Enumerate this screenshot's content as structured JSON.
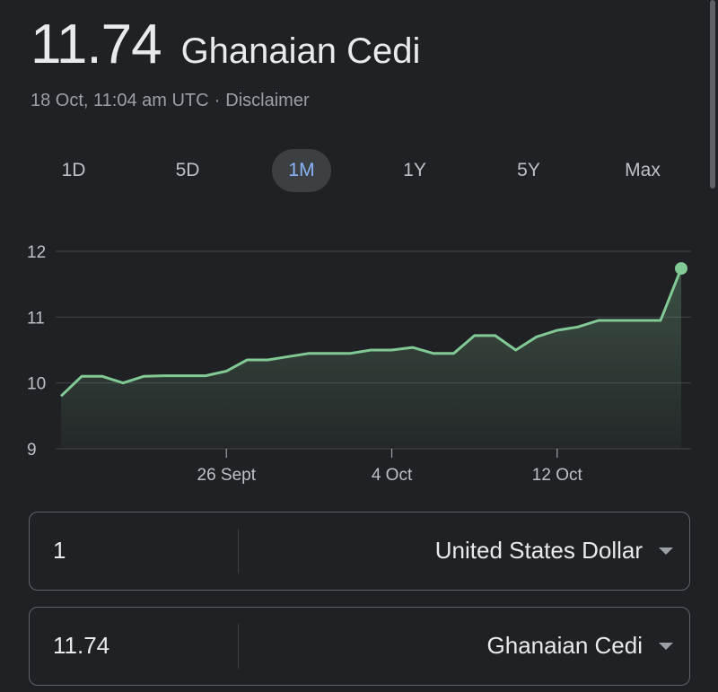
{
  "header": {
    "rate_value": "11.74",
    "rate_currency": "Ghanaian Cedi"
  },
  "meta": {
    "timestamp": "18 Oct, 11:04 am UTC",
    "separator": "·",
    "disclaimer_label": "Disclaimer"
  },
  "ranges": {
    "active": "1M",
    "items": [
      {
        "label": "1D"
      },
      {
        "label": "5D"
      },
      {
        "label": "1M"
      },
      {
        "label": "1Y"
      },
      {
        "label": "5Y"
      },
      {
        "label": "Max"
      }
    ]
  },
  "chart_data": {
    "type": "area",
    "ylim": [
      9,
      12
    ],
    "y_ticks": [
      9,
      10,
      11,
      12
    ],
    "x_ticks": [
      {
        "label": "26 Sept",
        "index": 8
      },
      {
        "label": "4 Oct",
        "index": 16
      },
      {
        "label": "12 Oct",
        "index": 24
      }
    ],
    "grid": true,
    "color": "#81c995",
    "series": [
      {
        "values": [
          9.8,
          10.1,
          10.1,
          10.0,
          10.1,
          10.11,
          10.11,
          10.11,
          10.18,
          10.35,
          10.35,
          10.4,
          10.45,
          10.45,
          10.45,
          10.5,
          10.5,
          10.54,
          10.45,
          10.45,
          10.72,
          10.72,
          10.5,
          10.7,
          10.8,
          10.85,
          10.95,
          10.95,
          10.95,
          10.95,
          11.74
        ]
      }
    ]
  },
  "converter": {
    "rows": [
      {
        "amount": "1",
        "currency": "United States Dollar"
      },
      {
        "amount": "11.74",
        "currency": "Ghanaian Cedi"
      }
    ]
  }
}
